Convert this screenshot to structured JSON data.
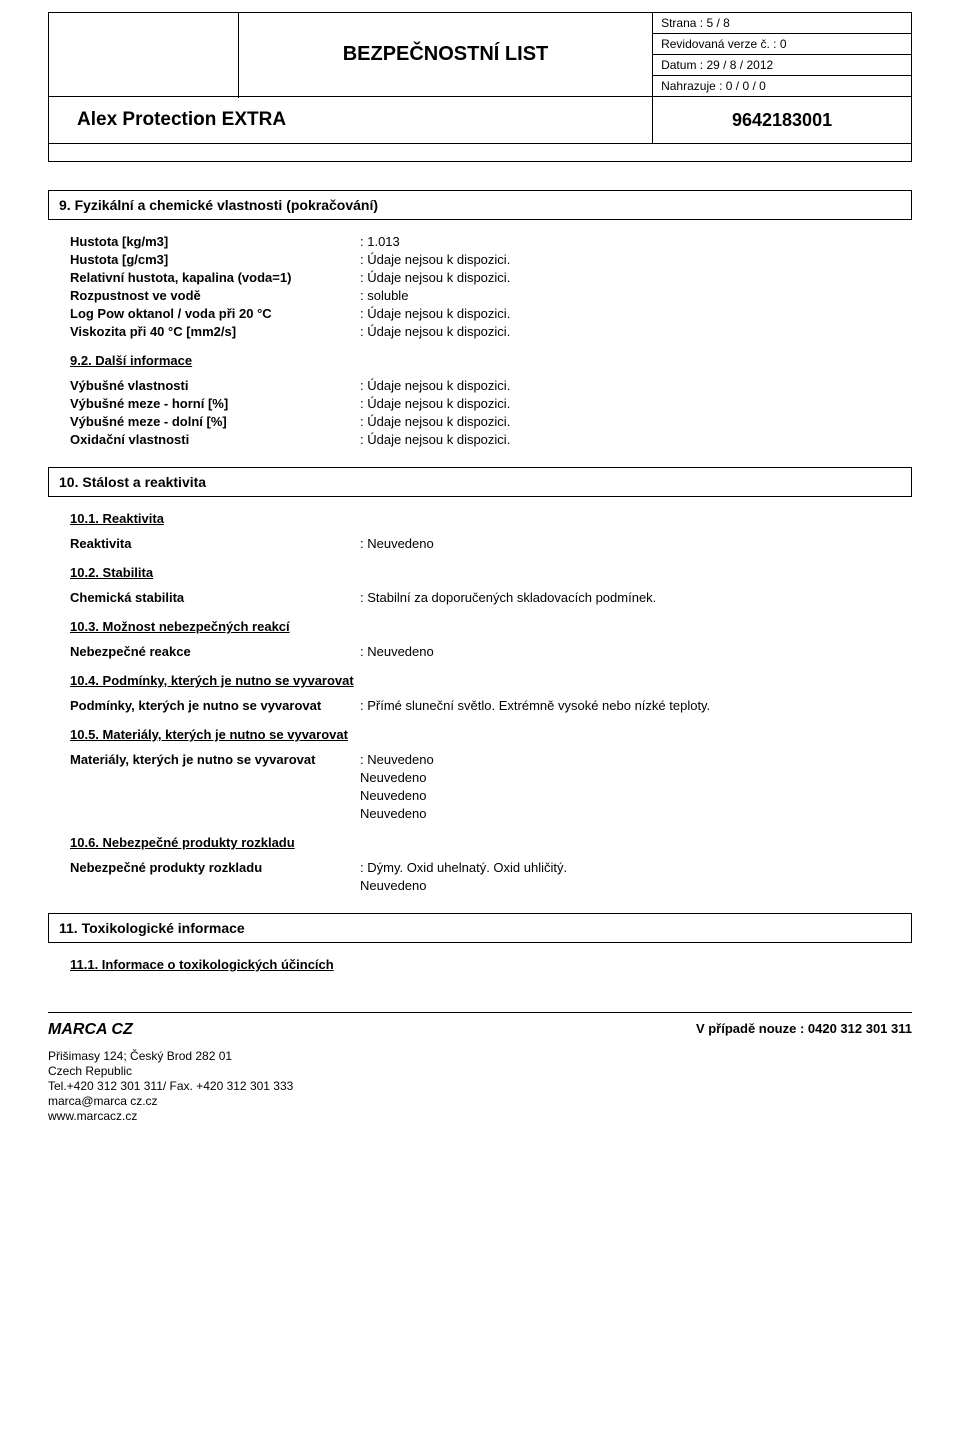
{
  "header": {
    "doc_title": "BEZPEČNOSTNÍ LIST",
    "page": "Strana : 5 / 8",
    "revision": "Revidovaná verze č. : 0",
    "date": "Datum : 29 / 8 / 2012",
    "replaces": "Nahrazuje : 0 / 0 / 0",
    "product": "Alex Protection EXTRA",
    "code": "9642183001"
  },
  "s9": {
    "title": "9.  Fyzikální a chemické vlastnosti  (pokračování)",
    "rows": [
      {
        "label": "Hustota [kg/m3]",
        "value": ": 1.013"
      },
      {
        "label": "Hustota [g/cm3]",
        "value": ": Údaje nejsou k dispozici."
      },
      {
        "label": "Relativní hustota, kapalina (voda=1)",
        "value": ": Údaje nejsou k dispozici."
      },
      {
        "label": "Rozpustnost ve vodě",
        "value": ": soluble"
      },
      {
        "label": "Log Pow oktanol / voda při 20 °C",
        "value": ": Údaje nejsou k dispozici."
      },
      {
        "label": "Viskozita při 40 °C [mm2/s]",
        "value": ": Údaje nejsou k dispozici."
      }
    ],
    "sub92": "9.2.  Další informace",
    "rows2": [
      {
        "label": "Výbušné vlastnosti",
        "value": ": Údaje nejsou k dispozici."
      },
      {
        "label": "Výbušné meze - horní [%]",
        "value": ": Údaje nejsou k dispozici."
      },
      {
        "label": "Výbušné meze - dolní [%]",
        "value": ": Údaje nejsou k dispozici."
      },
      {
        "label": "Oxidační vlastnosti",
        "value": ": Údaje nejsou k dispozici."
      }
    ]
  },
  "s10": {
    "title": "10.  Stálost a reaktivita",
    "sub101": "10.1.  Reaktivita",
    "r101": {
      "label": "Reaktivita",
      "value": ": Neuvedeno"
    },
    "sub102": "10.2.  Stabilita",
    "r102": {
      "label": "Chemická stabilita",
      "value": ": Stabilní za doporučených skladovacích podmínek."
    },
    "sub103": "10.3.  Možnost nebezpečných reakcí",
    "r103": {
      "label": "Nebezpečné reakce",
      "value": ": Neuvedeno"
    },
    "sub104": "10.4.  Podmínky, kterých je nutno se vyvarovat",
    "r104": {
      "label": "Podmínky, kterých je nutno se vyvarovat",
      "value": ": Přímé sluneční světlo. Extrémně vysoké nebo nízké teploty."
    },
    "sub105": "10.5.  Materiály, kterých je nutno se vyvarovat",
    "r105": {
      "label": "Materiály, kterých je nutno se vyvarovat",
      "value": ": Neuvedeno"
    },
    "r105b": "Neuvedeno",
    "r105c": "Neuvedeno",
    "r105d": "Neuvedeno",
    "sub106": "10.6.  Nebezpečné produkty rozkladu",
    "r106": {
      "label": "Nebezpečné produkty rozkladu",
      "value": ": Dýmy. Oxid uhelnatý. Oxid uhličitý."
    },
    "r106b": "Neuvedeno"
  },
  "s11": {
    "title": "11.  Toxikologické informace",
    "sub111": "11.1.  Informace o toxikologických účincích"
  },
  "footer": {
    "company": "MARCA CZ",
    "emergency": "V případě nouze : 0420 312 301 311",
    "addr1": "Přišimasy 124; Český Brod 282 01",
    "addr2": "Czech Republic",
    "tel": "Tel.+420 312 301 311/ Fax. +420 312 301 333",
    "email": "marca@marca cz.cz",
    "web": "www.marcacz.cz"
  }
}
